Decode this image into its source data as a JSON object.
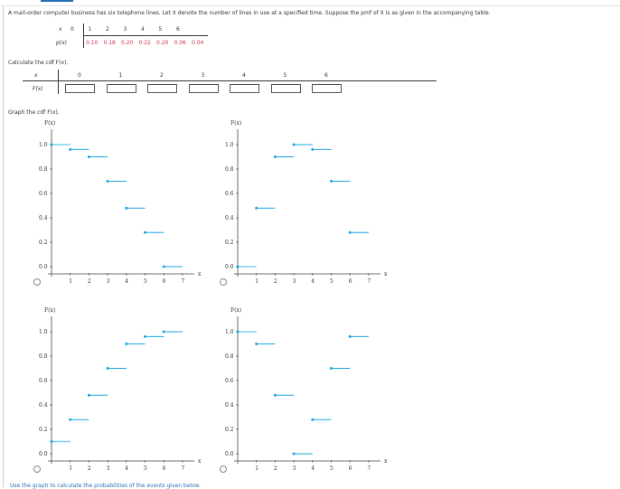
{
  "problem": {
    "intro": "A mail-order computer business has six telephone lines. Let X denote the number of lines in use at a specified time. Suppose the pmf of X is as given in the accompanying table."
  },
  "pmf_table": {
    "x_label": "x",
    "p_label": "p(x)",
    "x": [
      "0",
      "1",
      "2",
      "3",
      "4",
      "5",
      "6"
    ],
    "p": [
      "0.10",
      "0.18",
      "0.20",
      "0.22",
      "0.20",
      "0.06",
      "0.04"
    ]
  },
  "cdf_section": {
    "prompt": "Calculate the cdf F(x).",
    "x_label": "x",
    "f_label": "F(x)",
    "x": [
      "0",
      "1",
      "2",
      "3",
      "4",
      "5",
      "6"
    ],
    "inputs": [
      "",
      "",
      "",
      "",
      "",
      "",
      ""
    ]
  },
  "graph_section": {
    "prompt": "Graph the cdf F(x).",
    "footer": "Use the graph to calculate the probabilities of the events given below."
  },
  "colors": {
    "step": "#1aa7e0",
    "first_step": "#7fd0f0",
    "pmf_values": "#d0314a"
  },
  "chart_data": [
    {
      "type": "line",
      "ylabel": "F(x)",
      "xlabel": "x",
      "xticks": [
        "1",
        "2",
        "3",
        "4",
        "5",
        "6",
        "7"
      ],
      "yticks": [
        "0.0",
        "0.2",
        "0.4",
        "0.6",
        "0.8",
        "1.0"
      ],
      "x": [
        0,
        1,
        2,
        3,
        4,
        5,
        6
      ],
      "y": [
        1.0,
        0.96,
        0.9,
        0.7,
        0.48,
        0.28,
        0.0
      ],
      "xlim": [
        0,
        7
      ],
      "ylim": [
        0,
        1
      ]
    },
    {
      "type": "line",
      "ylabel": "F(x)",
      "xlabel": "x",
      "xticks": [
        "1",
        "2",
        "3",
        "4",
        "5",
        "6",
        "7"
      ],
      "yticks": [
        "0.0",
        "0.2",
        "0.4",
        "0.6",
        "0.8",
        "1.0"
      ],
      "x": [
        0,
        1,
        2,
        3,
        4,
        5,
        6
      ],
      "y": [
        0.0,
        0.48,
        0.9,
        1.0,
        0.96,
        0.7,
        0.28
      ],
      "xlim": [
        0,
        7
      ],
      "ylim": [
        0,
        1
      ]
    },
    {
      "type": "line",
      "ylabel": "F(x)",
      "xlabel": "x",
      "xticks": [
        "1",
        "2",
        "3",
        "4",
        "5",
        "6",
        "7"
      ],
      "yticks": [
        "0.0",
        "0.2",
        "0.4",
        "0.6",
        "0.8",
        "1.0"
      ],
      "x": [
        0,
        1,
        2,
        3,
        4,
        5,
        6
      ],
      "y": [
        0.1,
        0.28,
        0.48,
        0.7,
        0.9,
        0.96,
        1.0
      ],
      "xlim": [
        0,
        7
      ],
      "ylim": [
        0,
        1
      ]
    },
    {
      "type": "line",
      "ylabel": "F(x)",
      "xlabel": "x",
      "xticks": [
        "1",
        "2",
        "3",
        "4",
        "5",
        "6",
        "7"
      ],
      "yticks": [
        "0.0",
        "0.2",
        "0.4",
        "0.6",
        "0.8",
        "1.0"
      ],
      "x": [
        0,
        1,
        2,
        3,
        4,
        5,
        6
      ],
      "y": [
        1.0,
        0.9,
        0.48,
        0.0,
        0.28,
        0.7,
        0.96
      ],
      "xlim": [
        0,
        7
      ],
      "ylim": [
        0,
        1
      ]
    }
  ]
}
